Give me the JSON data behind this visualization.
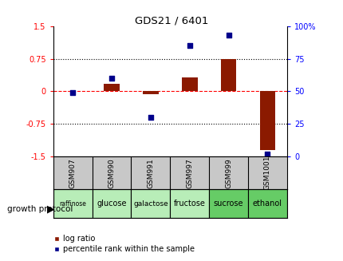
{
  "title": "GDS21 / 6401",
  "samples": [
    "GSM907",
    "GSM990",
    "GSM991",
    "GSM997",
    "GSM999",
    "GSM1001"
  ],
  "conditions": [
    "raffinose",
    "glucose",
    "galactose",
    "fructose",
    "sucrose",
    "ethanol"
  ],
  "log_ratio": [
    0.0,
    0.18,
    -0.07,
    0.32,
    0.75,
    -1.35
  ],
  "percentile_rank": [
    49,
    60,
    30,
    85,
    93,
    2
  ],
  "bar_color": "#8B1A00",
  "dot_color": "#00008B",
  "ylim_left": [
    -1.5,
    1.5
  ],
  "ylim_right": [
    0,
    100
  ],
  "yticks_left": [
    -1.5,
    -0.75,
    0,
    0.75,
    1.5
  ],
  "ytick_labels_left": [
    "-1.5",
    "-0.75",
    "0",
    "0.75",
    "1.5"
  ],
  "yticks_right": [
    0,
    25,
    50,
    75,
    100
  ],
  "ytick_labels_right": [
    "0",
    "25",
    "50",
    "75",
    "100%"
  ],
  "hline_y": 0,
  "dotted_lines": [
    -0.75,
    0.75
  ],
  "bg_color": "#FFFFFF",
  "plot_bg": "#FFFFFF",
  "legend_log_ratio": "log ratio",
  "legend_pct": "percentile rank within the sample",
  "growth_protocol_label": "growth protocol",
  "sample_bg": "#c8c8c8",
  "cond_colors_light": "#b8edb8",
  "cond_colors_dark": "#66cc66",
  "bar_width": 0.4
}
